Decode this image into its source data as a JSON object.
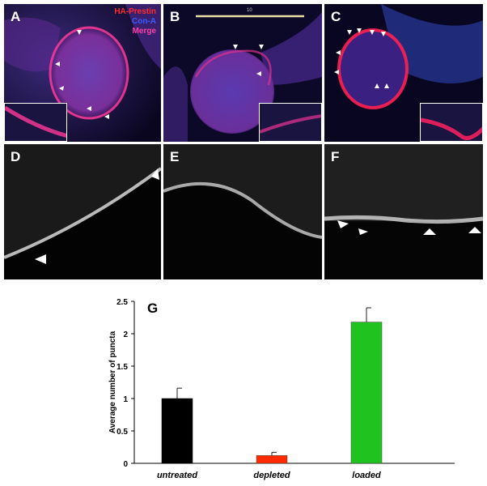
{
  "panels": {
    "A": {
      "label": "A"
    },
    "B": {
      "label": "B"
    },
    "C": {
      "label": "C"
    },
    "D": {
      "label": "D"
    },
    "E": {
      "label": "E"
    },
    "F": {
      "label": "F"
    }
  },
  "legend": {
    "line1": "HA-Prestin",
    "line1_color": "#ff2b2b",
    "line2": "Con-A",
    "line2_color": "#3a5bff",
    "line3": "Merge",
    "line3_color": "#ff3fa8"
  },
  "scale_bar_label": "10",
  "chart_data": {
    "type": "bar",
    "panel_label": "G",
    "categories": [
      "untreated",
      "depleted",
      "loaded"
    ],
    "values": [
      1.0,
      0.12,
      2.18
    ],
    "errors": [
      0.16,
      0.05,
      0.22
    ],
    "colors": [
      "#000000",
      "#ff2a00",
      "#1fc21f"
    ],
    "ylabel": "Average number of puncta",
    "xlabel": "",
    "title": "",
    "ylim": [
      0,
      2.5
    ],
    "yticks": [
      "0",
      "0.5",
      "1",
      "1.5",
      "2",
      "2.5"
    ],
    "grid": false
  }
}
